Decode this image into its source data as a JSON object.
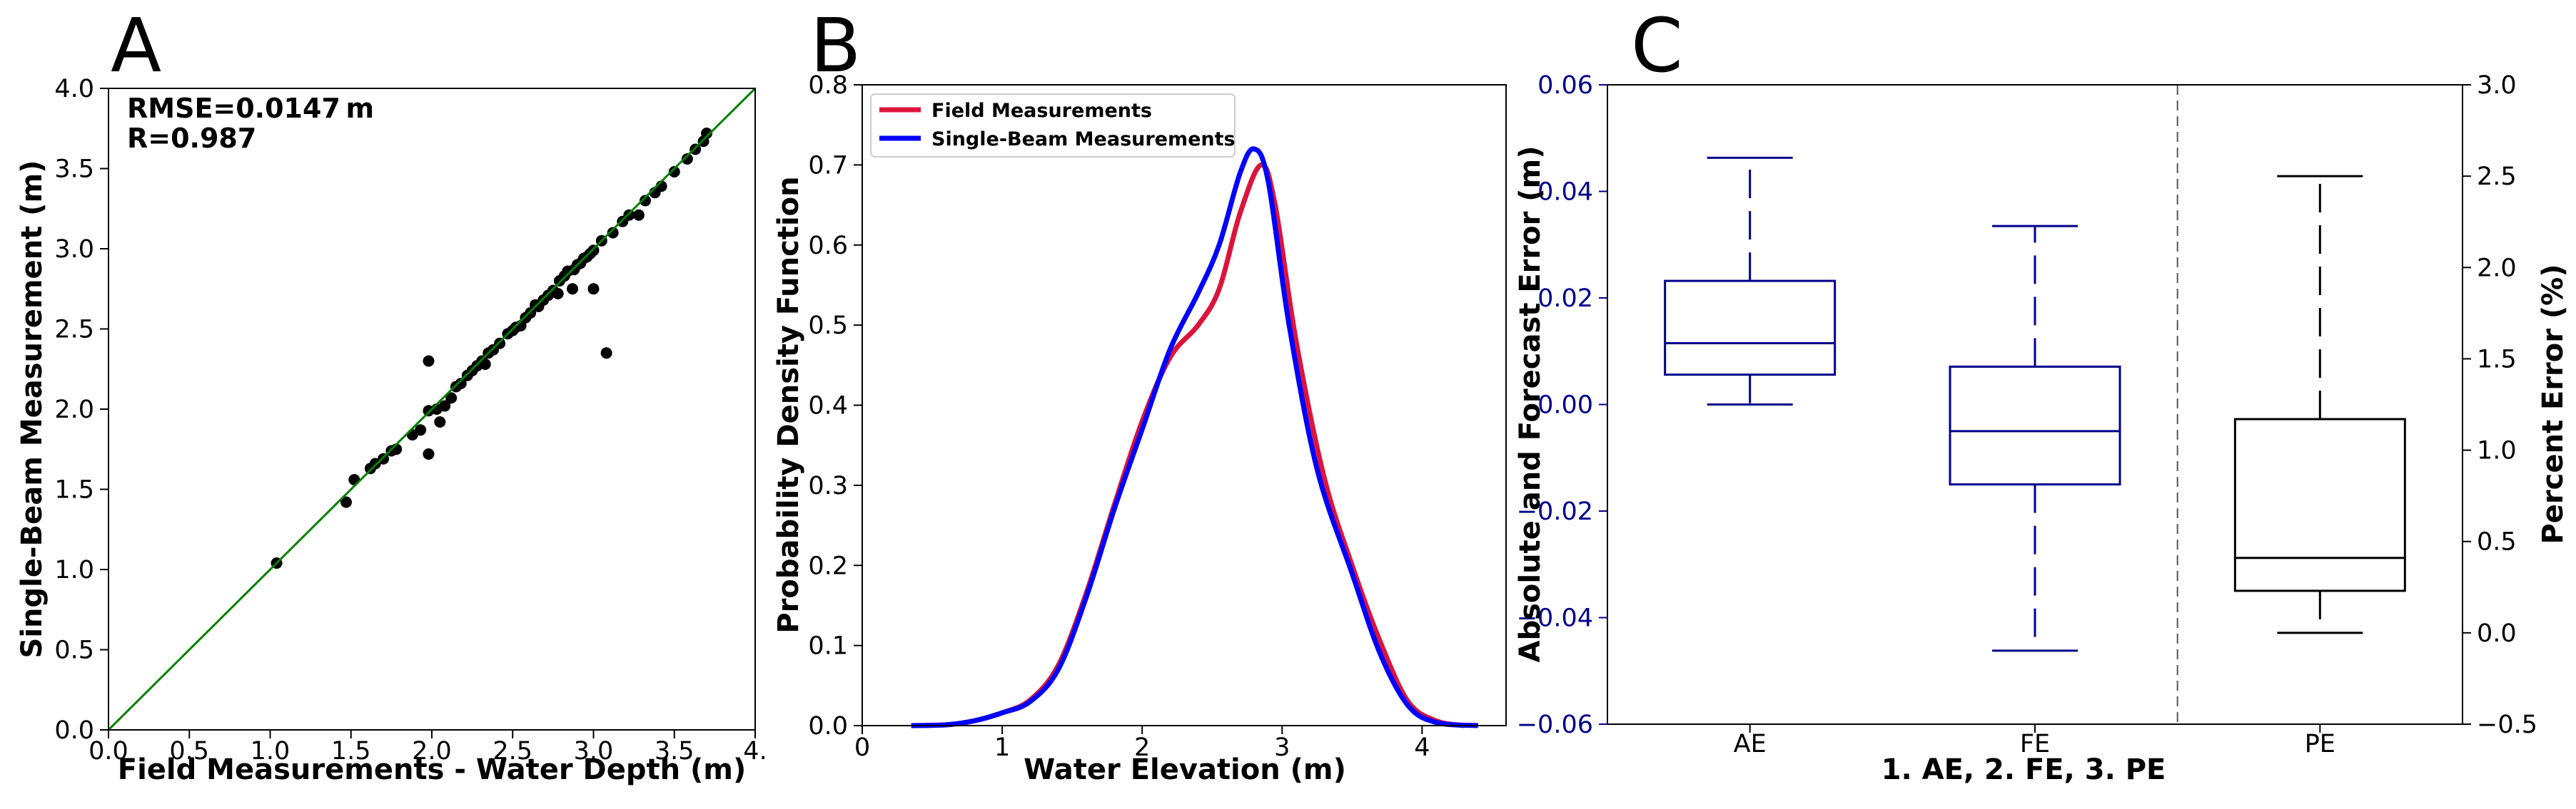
{
  "colors": {
    "fit_line": "#008000",
    "points": "#000000",
    "field": "#dc143c",
    "singlebeam": "#0000ff",
    "error_box": "#00008b",
    "pe_box": "#000000"
  },
  "chart_data": [
    {
      "panel": "A",
      "type": "scatter",
      "xlabel": "Field Measurements - Water Depth (m)",
      "ylabel": "Single-Beam Measurement (m)",
      "xlim": [
        0,
        4
      ],
      "ylim": [
        0,
        4
      ],
      "xticks": [
        0,
        0.5,
        1,
        1.5,
        2,
        2.5,
        3,
        3.5,
        4
      ],
      "xtick_labels": [
        "0.0",
        "0.5",
        "1.0",
        "1.5",
        "2.0",
        "2.5",
        "3.0",
        "3.5",
        "4."
      ],
      "yticks": [
        0,
        0.5,
        1,
        1.5,
        2,
        2.5,
        3,
        3.5,
        4
      ],
      "ytick_labels": [
        "0.0",
        "0.5",
        "1.0",
        "1.5",
        "2.0",
        "2.5",
        "3.0",
        "3.5",
        "4.0"
      ],
      "annotations": [
        "RMSE=0.0147 m",
        "R=0.987"
      ],
      "fit_line": [
        [
          0,
          0
        ],
        [
          4,
          4
        ]
      ],
      "points": [
        [
          1.04,
          1.04
        ],
        [
          1.47,
          1.42
        ],
        [
          1.52,
          1.56
        ],
        [
          1.62,
          1.63
        ],
        [
          1.65,
          1.66
        ],
        [
          1.7,
          1.69
        ],
        [
          1.75,
          1.74
        ],
        [
          1.78,
          1.75
        ],
        [
          1.88,
          1.84
        ],
        [
          1.93,
          1.87
        ],
        [
          1.98,
          1.72
        ],
        [
          1.98,
          2.3
        ],
        [
          1.98,
          1.99
        ],
        [
          2.03,
          2.0
        ],
        [
          2.05,
          1.92
        ],
        [
          2.08,
          2.02
        ],
        [
          2.12,
          2.07
        ],
        [
          2.15,
          2.14
        ],
        [
          2.18,
          2.16
        ],
        [
          2.22,
          2.21
        ],
        [
          2.25,
          2.24
        ],
        [
          2.28,
          2.27
        ],
        [
          2.31,
          2.3
        ],
        [
          2.33,
          2.28
        ],
        [
          2.35,
          2.35
        ],
        [
          2.38,
          2.37
        ],
        [
          2.42,
          2.41
        ],
        [
          2.47,
          2.47
        ],
        [
          2.5,
          2.49
        ],
        [
          2.52,
          2.51
        ],
        [
          2.55,
          2.52
        ],
        [
          2.58,
          2.57
        ],
        [
          2.61,
          2.6
        ],
        [
          2.64,
          2.65
        ],
        [
          2.66,
          2.64
        ],
        [
          2.69,
          2.68
        ],
        [
          2.72,
          2.71
        ],
        [
          2.75,
          2.74
        ],
        [
          2.78,
          2.72
        ],
        [
          2.79,
          2.8
        ],
        [
          2.82,
          2.83
        ],
        [
          2.84,
          2.86
        ],
        [
          2.87,
          2.75
        ],
        [
          2.88,
          2.87
        ],
        [
          2.9,
          2.9
        ],
        [
          2.92,
          2.91
        ],
        [
          2.94,
          2.94
        ],
        [
          2.96,
          2.95
        ],
        [
          2.98,
          2.97
        ],
        [
          3.0,
          2.99
        ],
        [
          3.0,
          2.75
        ],
        [
          3.05,
          3.05
        ],
        [
          3.08,
          2.35
        ],
        [
          3.12,
          3.1
        ],
        [
          3.18,
          3.17
        ],
        [
          3.22,
          3.21
        ],
        [
          3.28,
          3.21
        ],
        [
          3.32,
          3.3
        ],
        [
          3.38,
          3.35
        ],
        [
          3.42,
          3.39
        ],
        [
          3.5,
          3.48
        ],
        [
          3.58,
          3.56
        ],
        [
          3.63,
          3.62
        ],
        [
          3.68,
          3.67
        ],
        [
          3.7,
          3.72
        ]
      ]
    },
    {
      "panel": "B",
      "type": "line",
      "xlabel": "Water Elevation (m)",
      "ylabel": "Probability Density Function",
      "xlim": [
        0,
        4.6
      ],
      "ylim": [
        0,
        0.8
      ],
      "xticks": [
        0,
        1,
        2,
        3,
        4
      ],
      "xtick_labels": [
        "0",
        "1",
        "2",
        "3",
        "4"
      ],
      "yticks": [
        0,
        0.1,
        0.2,
        0.3,
        0.4,
        0.5,
        0.6,
        0.7,
        0.8
      ],
      "ytick_labels": [
        "0.0",
        "0.1",
        "0.2",
        "0.3",
        "0.4",
        "0.5",
        "0.6",
        "0.7",
        "0.8"
      ],
      "legend_position": "upper-left",
      "series": [
        {
          "name": "Field Measurements",
          "color": "#dc143c",
          "points": [
            [
              0.35,
              0.0
            ],
            [
              0.6,
              0.001
            ],
            [
              0.8,
              0.006
            ],
            [
              1.0,
              0.016
            ],
            [
              1.2,
              0.032
            ],
            [
              1.4,
              0.075
            ],
            [
              1.6,
              0.165
            ],
            [
              1.8,
              0.275
            ],
            [
              2.0,
              0.38
            ],
            [
              2.2,
              0.46
            ],
            [
              2.4,
              0.5
            ],
            [
              2.55,
              0.545
            ],
            [
              2.7,
              0.64
            ],
            [
              2.85,
              0.7
            ],
            [
              2.95,
              0.65
            ],
            [
              3.1,
              0.48
            ],
            [
              3.3,
              0.31
            ],
            [
              3.5,
              0.2
            ],
            [
              3.7,
              0.105
            ],
            [
              3.9,
              0.03
            ],
            [
              4.1,
              0.006
            ],
            [
              4.3,
              0.0
            ]
          ]
        },
        {
          "name": "Single-Beam Measurements",
          "color": "#0000ff",
          "points": [
            [
              0.35,
              0.0
            ],
            [
              0.6,
              0.001
            ],
            [
              0.8,
              0.006
            ],
            [
              1.0,
              0.016
            ],
            [
              1.2,
              0.03
            ],
            [
              1.4,
              0.07
            ],
            [
              1.6,
              0.16
            ],
            [
              1.8,
              0.27
            ],
            [
              2.0,
              0.37
            ],
            [
              2.2,
              0.47
            ],
            [
              2.4,
              0.54
            ],
            [
              2.55,
              0.6
            ],
            [
              2.7,
              0.69
            ],
            [
              2.8,
              0.72
            ],
            [
              2.9,
              0.68
            ],
            [
              3.05,
              0.5
            ],
            [
              3.25,
              0.32
            ],
            [
              3.5,
              0.19
            ],
            [
              3.7,
              0.09
            ],
            [
              3.9,
              0.025
            ],
            [
              4.1,
              0.004
            ],
            [
              4.4,
              0.0
            ]
          ]
        }
      ]
    },
    {
      "panel": "C",
      "type": "box",
      "xlabel": "1. AE, 2. FE, 3. PE",
      "ylabel_left": "Absolute and Forecast Error (m)",
      "ylabel_right": "Percent Error (%)",
      "ylim_left": [
        -0.06,
        0.06
      ],
      "ylim_right": [
        -0.5,
        3.0
      ],
      "yticks_left": [
        -0.06,
        -0.04,
        -0.02,
        0.0,
        0.02,
        0.04,
        0.06
      ],
      "ytick_labels_left": [
        "−0.06",
        "−0.04",
        "−0.02",
        "0.00",
        "0.02",
        "0.04",
        "0.06"
      ],
      "yticks_right": [
        -0.5,
        0.0,
        0.5,
        1.0,
        1.5,
        2.0,
        2.5,
        3.0
      ],
      "ytick_labels_right": [
        "−0.5",
        "0.0",
        "0.5",
        "1.0",
        "1.5",
        "2.0",
        "2.5",
        "3.0"
      ],
      "divider_after": 2,
      "boxes": [
        {
          "label": "AE",
          "axis": "left",
          "color": "#00008b",
          "min": 0.0,
          "q1": 0.0056,
          "median": 0.0115,
          "q3": 0.0232,
          "max": 0.0463
        },
        {
          "label": "FE",
          "axis": "left",
          "color": "#00008b",
          "min": -0.0462,
          "q1": -0.015,
          "median": -0.005,
          "q3": 0.0071,
          "max": 0.0335
        },
        {
          "label": "PE",
          "axis": "right",
          "color": "#000000",
          "min": 0.0,
          "q1": 0.23,
          "median": 0.41,
          "q3": 1.17,
          "max": 2.5
        }
      ]
    }
  ]
}
